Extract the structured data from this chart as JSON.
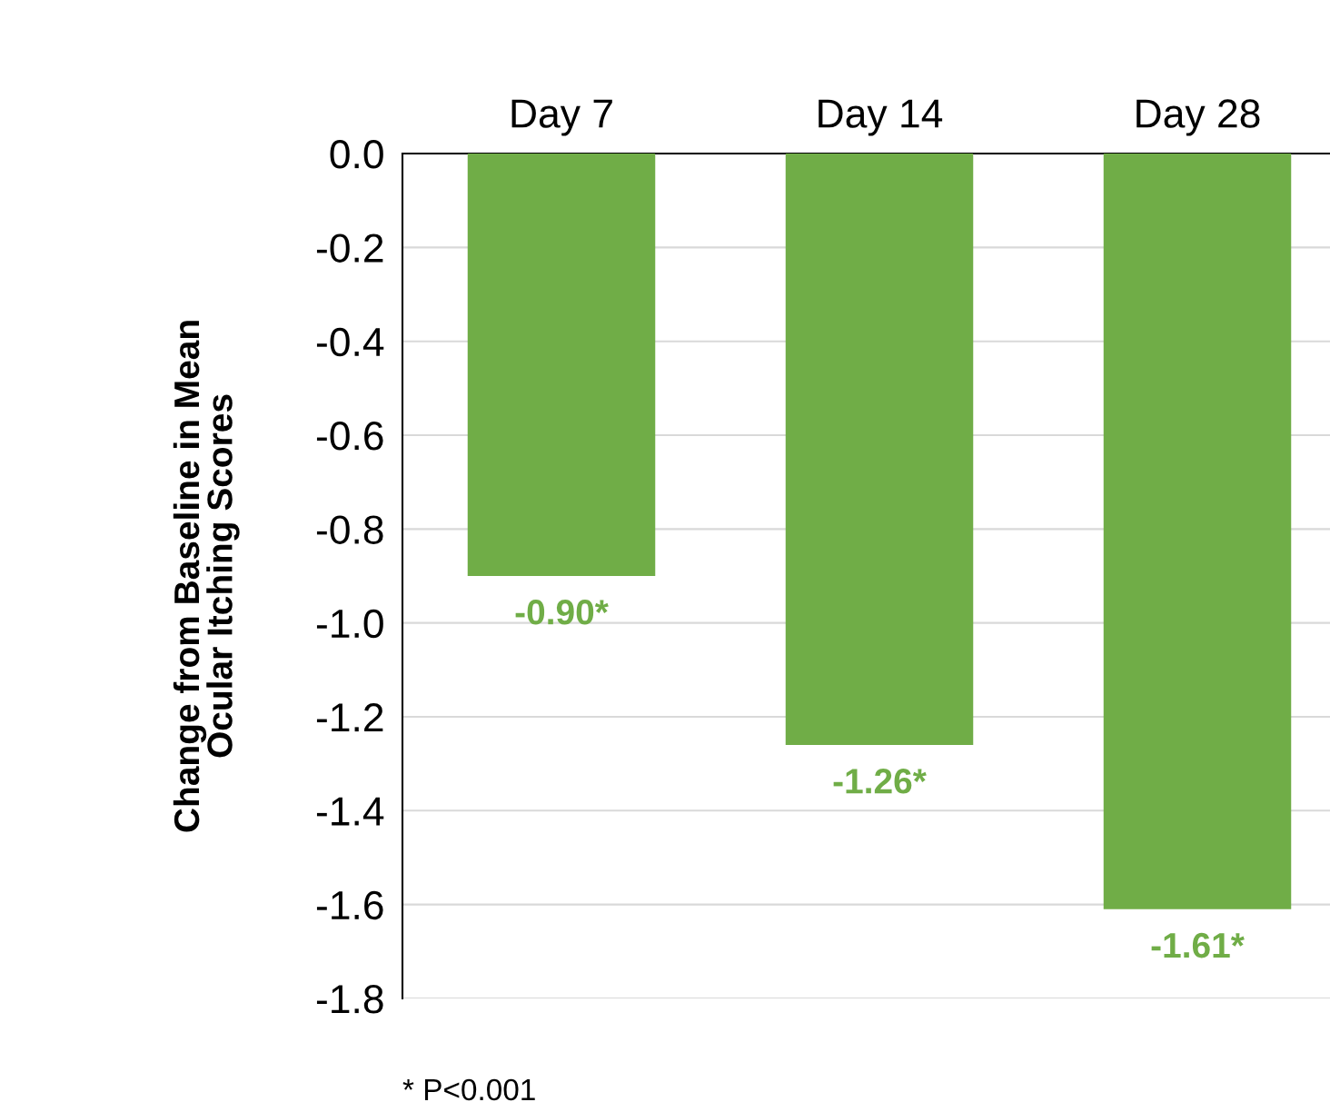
{
  "chart_data": {
    "type": "bar",
    "ylabel": "Change from Baseline in Mean\nOcular Itching Scores",
    "categories": [
      "Day 7",
      "Day 14",
      "Day 28"
    ],
    "series": [
      {
        "color": "#70ad47",
        "values": [
          -0.9,
          -1.26,
          -1.61
        ],
        "value_labels": [
          "-0.90*",
          "-1.26*",
          "-1.61*"
        ]
      }
    ],
    "ylim": [
      -1.8,
      0
    ],
    "yticks": [
      {
        "value": 0,
        "label": "0.0"
      },
      {
        "value": -0.2,
        "label": "-0.2"
      },
      {
        "value": -0.4,
        "label": "-0.4"
      },
      {
        "value": -0.6,
        "label": "-0.6"
      },
      {
        "value": -0.8,
        "label": "-0.8"
      },
      {
        "value": -1.0,
        "label": "-1.0"
      },
      {
        "value": -1.2,
        "label": "-1.2"
      },
      {
        "value": -1.4,
        "label": "-1.4"
      },
      {
        "value": -1.6,
        "label": "-1.6"
      },
      {
        "value": -1.8,
        "label": "-1.8"
      }
    ],
    "grid": "y",
    "legend": false,
    "annotations": [
      "* P<0.001"
    ]
  }
}
